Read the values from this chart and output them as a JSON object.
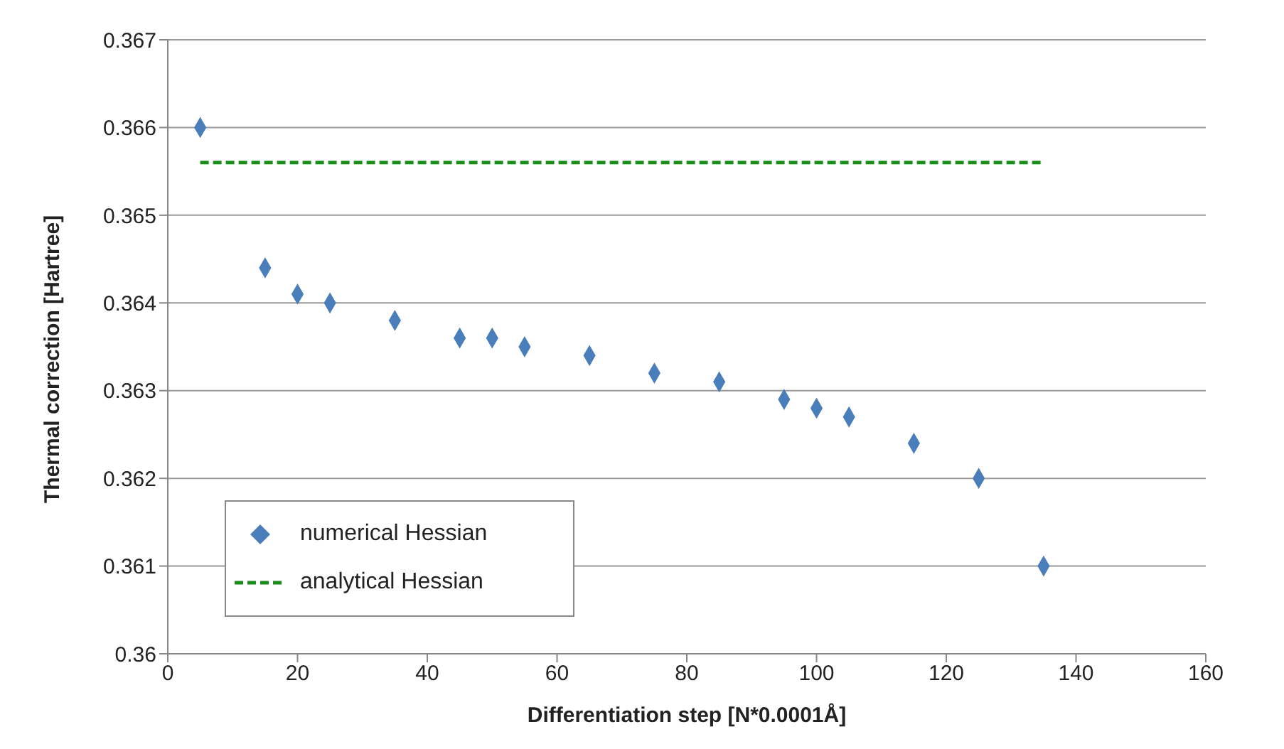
{
  "chart_data": {
    "type": "scatter",
    "xlabel": "Differentiation step [N*0.0001Å]",
    "ylabel": "Thermal correction [Hartree]",
    "xlim": [
      0,
      160
    ],
    "xticks": [
      0,
      20,
      40,
      60,
      80,
      100,
      120,
      140,
      160
    ],
    "ylim": [
      0.36,
      0.367
    ],
    "yticks": [
      0.36,
      0.361,
      0.362,
      0.363,
      0.364,
      0.365,
      0.366,
      0.367
    ],
    "grid": "y",
    "legend": "bottom left",
    "series": [
      {
        "name": "numerical Hessian",
        "type": "scatter",
        "color": "#4a7ebb",
        "marker": "diamond",
        "x": [
          5,
          15,
          20,
          25,
          35,
          45,
          50,
          55,
          65,
          75,
          85,
          95,
          100,
          105,
          115,
          125,
          135
        ],
        "values": [
          0.366,
          0.3644,
          0.3641,
          0.364,
          0.3638,
          0.3636,
          0.3636,
          0.3635,
          0.3634,
          0.3632,
          0.3631,
          0.3629,
          0.3628,
          0.3627,
          0.3624,
          0.362,
          0.361
        ]
      },
      {
        "name": "analytical Hessian",
        "type": "line",
        "color": "#1a8c1a",
        "line_style": "dashed",
        "marker": "none",
        "x": [
          5,
          135
        ],
        "values": [
          0.3656,
          0.3656
        ]
      }
    ]
  }
}
